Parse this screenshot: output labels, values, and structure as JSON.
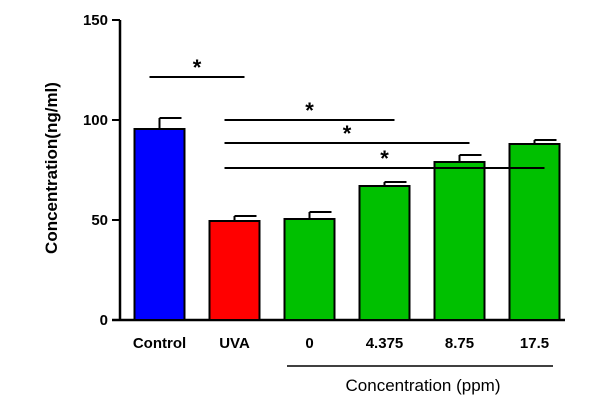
{
  "chart_data": {
    "type": "bar",
    "title": "",
    "ylabel": "Concentration(ng/ml)",
    "ylim": [
      0,
      150
    ],
    "yticks": [
      0,
      50,
      100,
      150
    ],
    "grid": false,
    "categories": [
      "Control",
      "UVA",
      "0",
      "4.375",
      "8.75",
      "17.5"
    ],
    "values": [
      95.5,
      49.5,
      50.5,
      67,
      79,
      88
    ],
    "errors": [
      5.5,
      2.5,
      3.5,
      2,
      3.5,
      2
    ],
    "colors": [
      "#0000ff",
      "#ff0000",
      "#00c000",
      "#00c000",
      "#00c000",
      "#00c000"
    ],
    "group_label": "Concentration (ppm)",
    "group_categories": [
      "0",
      "4.375",
      "8.75",
      "17.5"
    ],
    "significance": [
      {
        "from": "Control",
        "to": "UVA",
        "label": "*"
      },
      {
        "from": "UVA",
        "to": "4.375",
        "label": "*"
      },
      {
        "from": "UVA",
        "to": "8.75",
        "label": "*"
      },
      {
        "from": "UVA",
        "to": "17.5",
        "label": "*"
      }
    ]
  }
}
